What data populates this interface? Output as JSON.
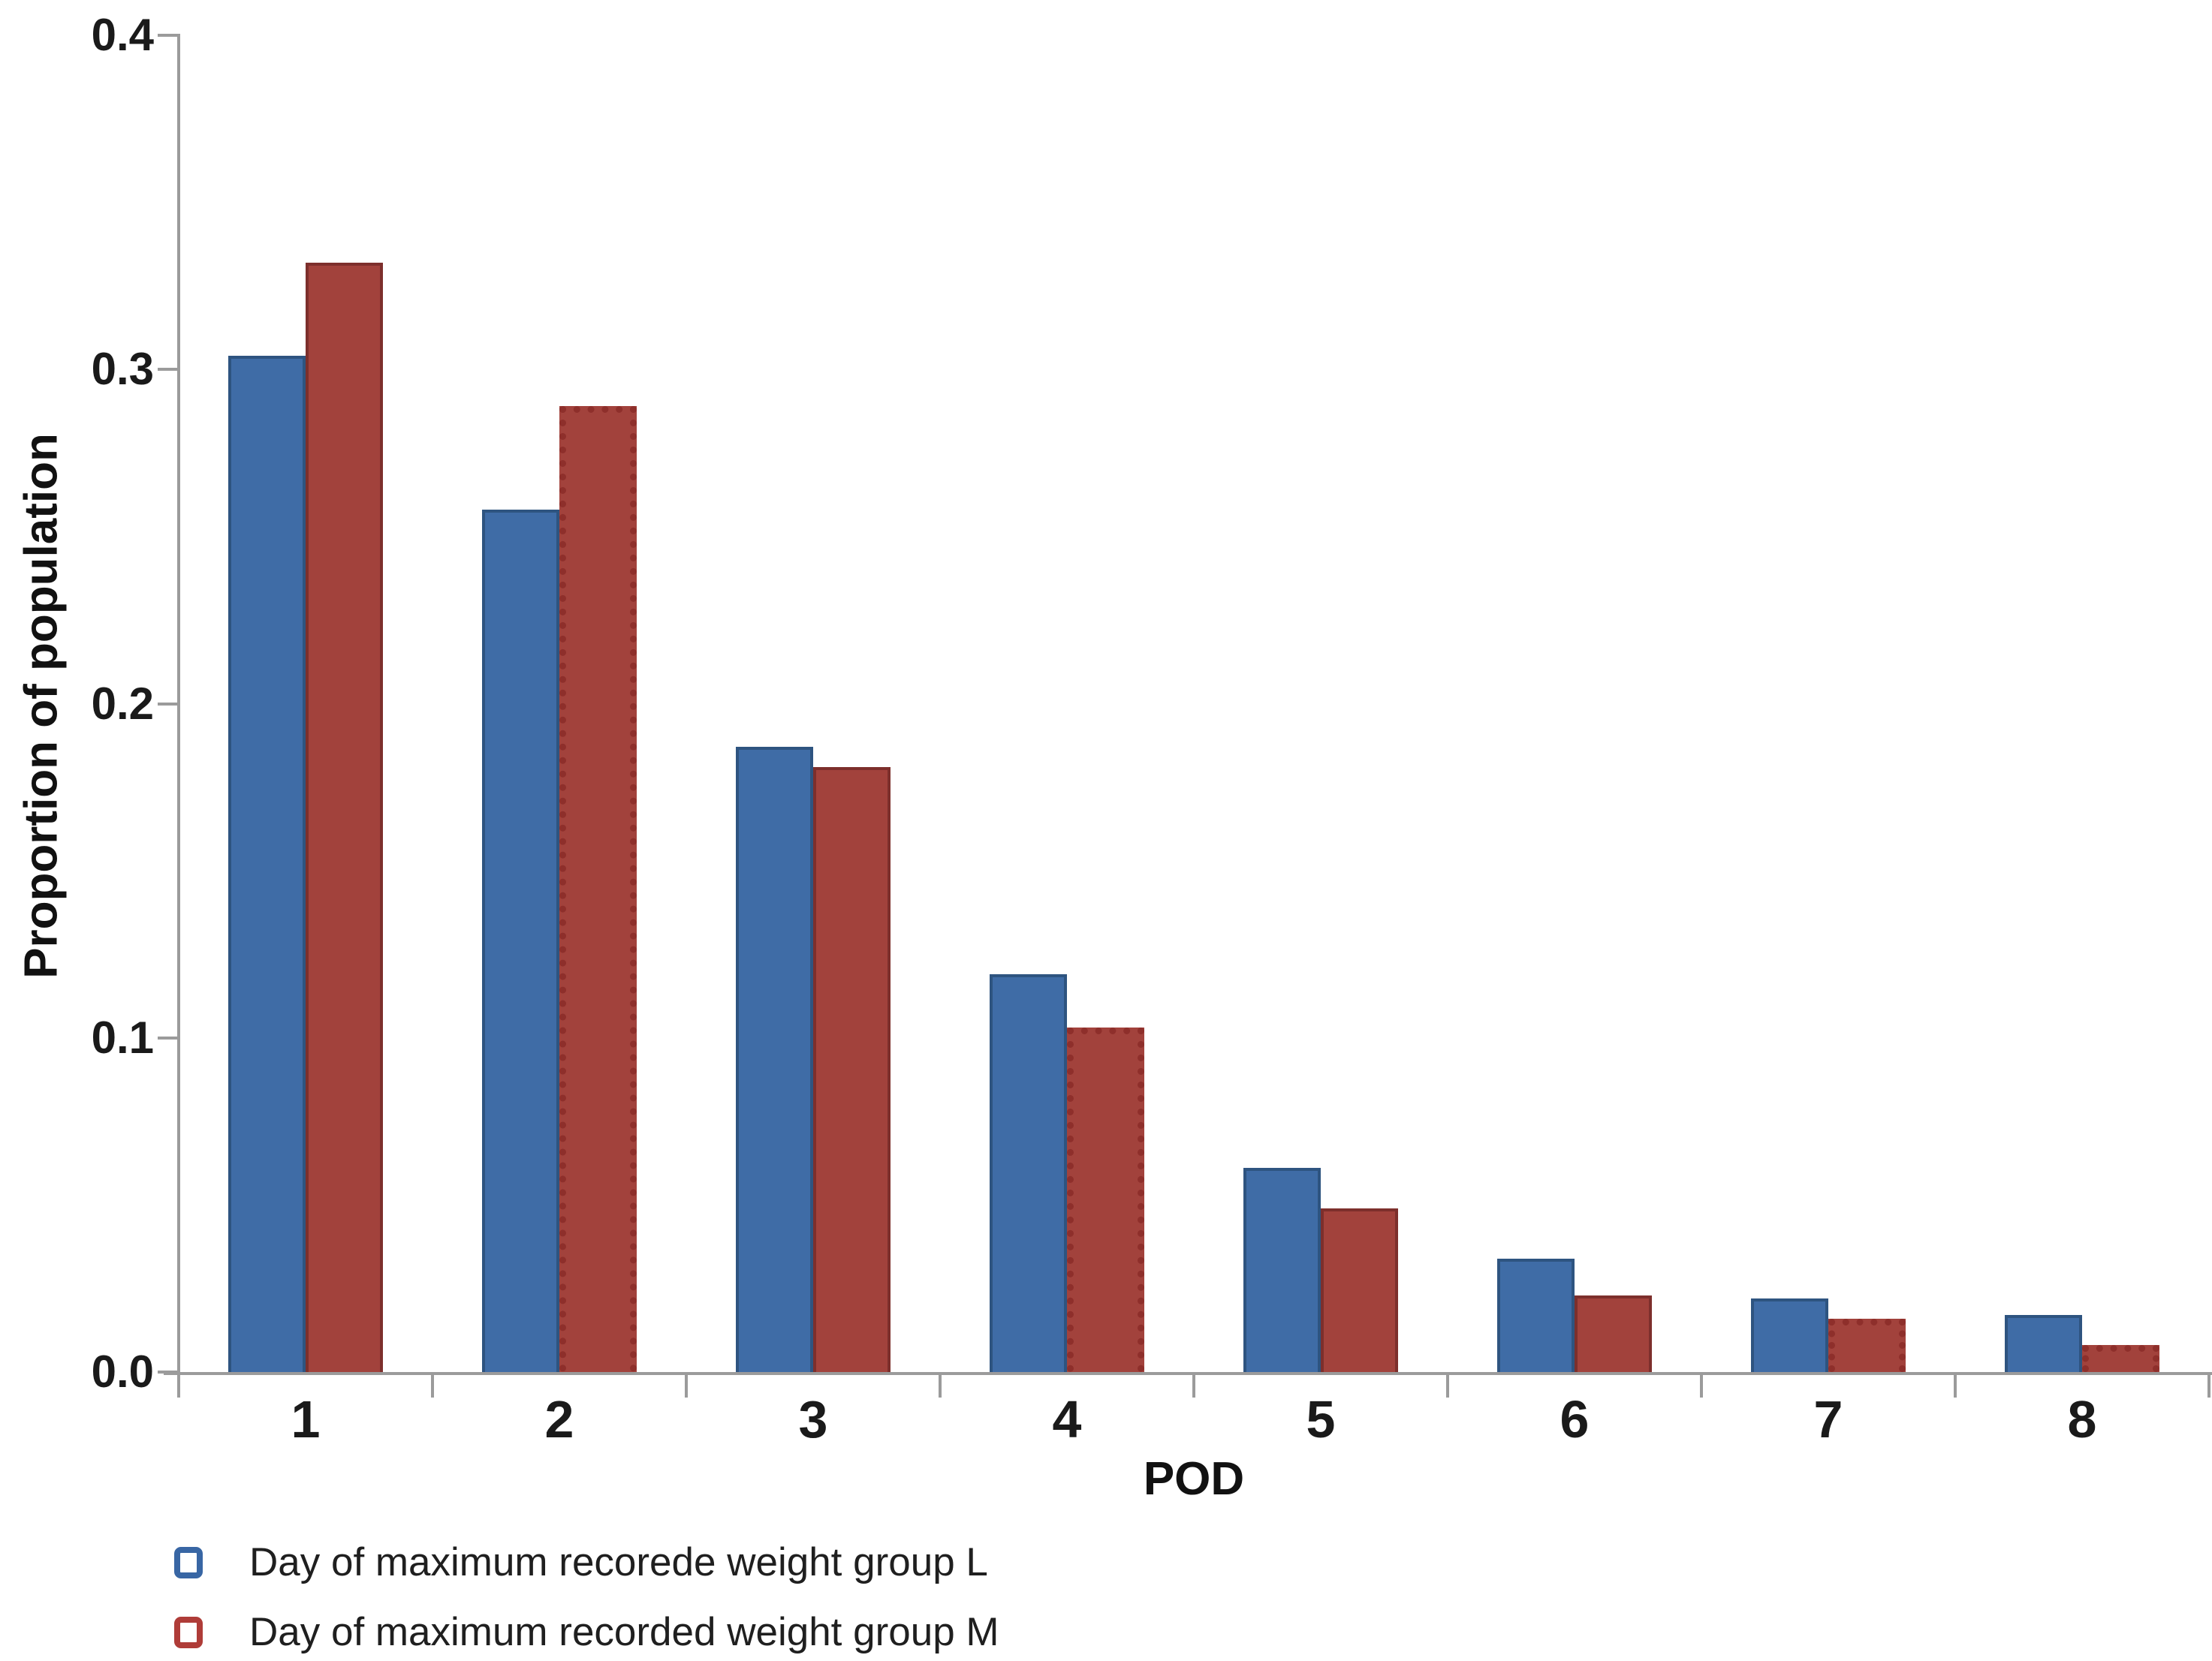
{
  "chart_data": {
    "type": "bar",
    "title": "",
    "xlabel": "POD",
    "ylabel": "Proportion of population",
    "categories": [
      "1",
      "2",
      "3",
      "4",
      "5",
      "6",
      "7",
      "8"
    ],
    "series": [
      {
        "name": "Day of maximum recorede weight group L",
        "color": "#3f6ca6",
        "border_color": "#2e5480",
        "values": [
          0.304,
          0.258,
          0.187,
          0.119,
          0.061,
          0.034,
          0.022,
          0.017
        ],
        "dotted": [
          false,
          false,
          false,
          false,
          false,
          false,
          false,
          false
        ]
      },
      {
        "name": "Day of maximum recorded weight group M",
        "color": "#a2423c",
        "border_color": "#7d2f2c",
        "values": [
          0.332,
          0.289,
          0.181,
          0.103,
          0.049,
          0.023,
          0.016,
          0.008
        ],
        "dotted": [
          false,
          true,
          false,
          true,
          false,
          false,
          true,
          true
        ]
      }
    ],
    "ylim": [
      0,
      0.4
    ],
    "yticks": [
      "0.0",
      "0.1",
      "0.2",
      "0.3",
      "0.4"
    ],
    "grid": false,
    "legend_position": "bottom-left",
    "axis_color": "#9b9b9b"
  },
  "axis_titles": {
    "y": "Proportion of population",
    "x": "POD"
  }
}
